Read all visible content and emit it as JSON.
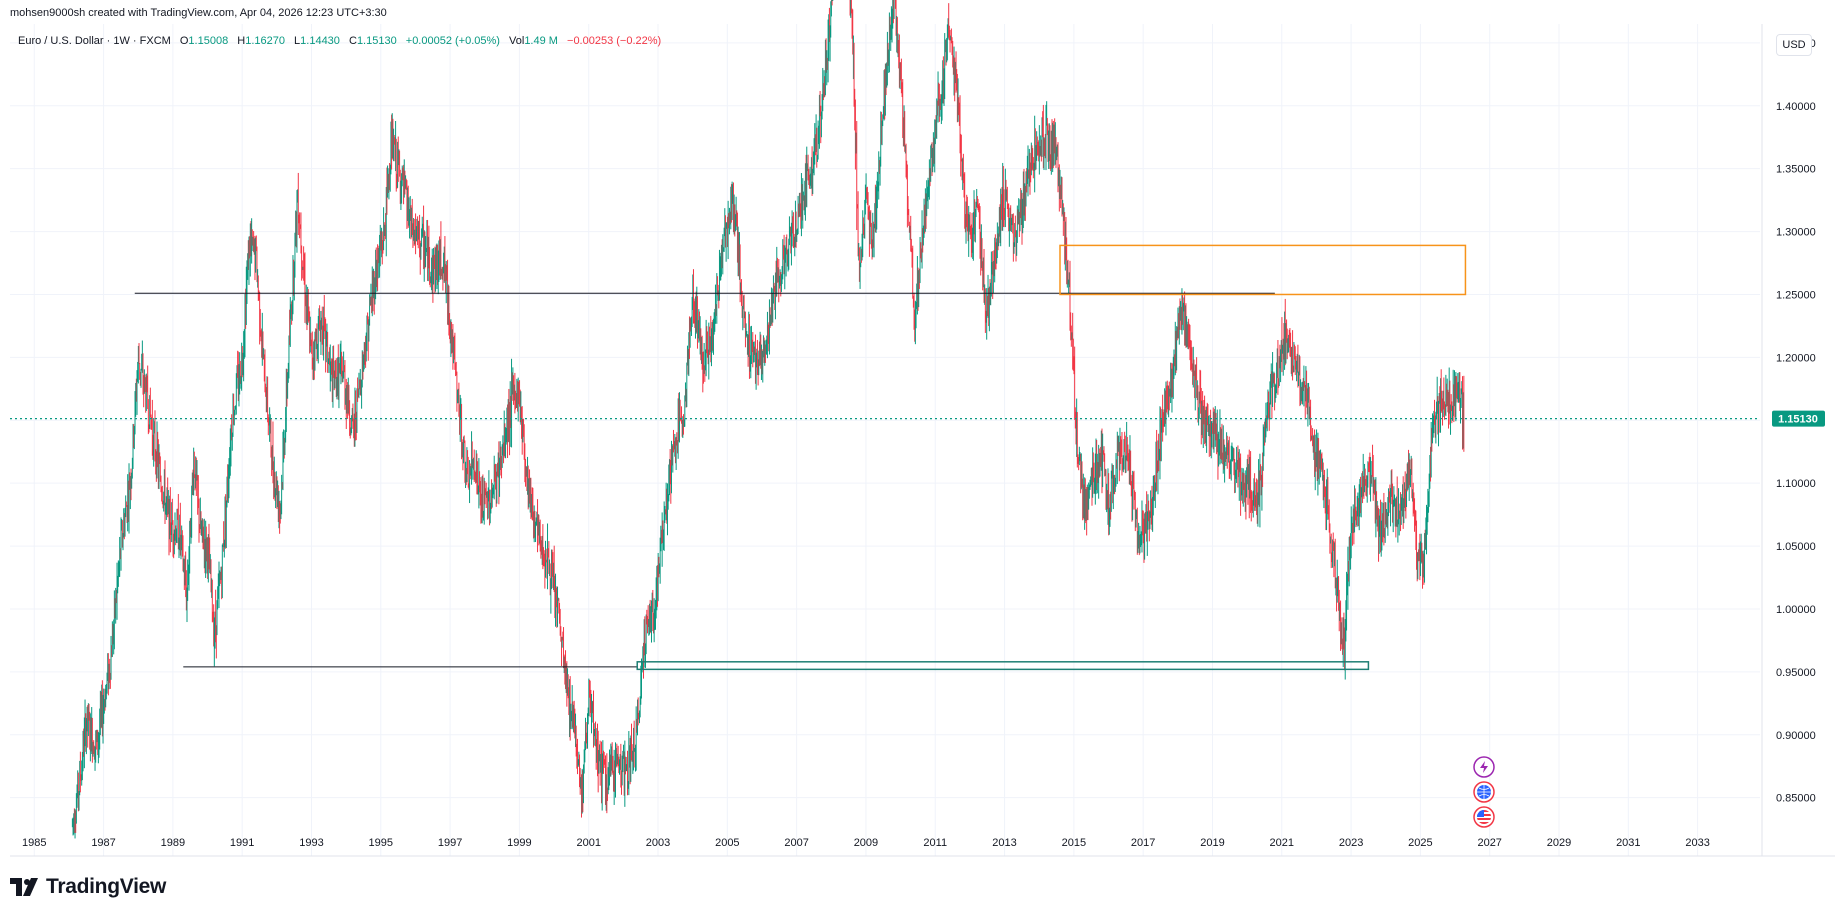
{
  "attribution": "mohsen9000sh created with TradingView.com, Apr 04, 2026 12:23 UTC+3:30",
  "legend": {
    "symbol": "Euro / U.S. Dollar · 1W · FXCM",
    "open_label": "O",
    "open": "1.15008",
    "high_label": "H",
    "high": "1.16270",
    "low_label": "L",
    "low": "1.14430",
    "close_label": "C",
    "close": "1.15130",
    "change": "+0.00052 (+0.05%)",
    "vol_label": "Vol",
    "vol": "1.49 M",
    "vol_change": "−0.00253 (−0.22%)"
  },
  "currency_button": "USD",
  "price_label": "1.15130",
  "logo_text": "TradingView",
  "colors": {
    "up": "#089981",
    "down": "#f23645",
    "orange": "#f7931a",
    "teal_box": "#1e7f74",
    "line": "#131722",
    "grid": "#f0f3fa"
  },
  "icons": [
    "lightning-icon",
    "globe-icon",
    "us-flag-icon"
  ],
  "chart_data": {
    "type": "candlestick",
    "title": "Euro / U.S. Dollar · 1W · FXCM",
    "y_ticks": [
      "1.45000",
      "1.40000",
      "1.35000",
      "1.30000",
      "1.25000",
      "1.20000",
      "1.15000",
      "1.10000",
      "1.05000",
      "1.00000",
      "0.95000",
      "0.90000",
      "0.85000"
    ],
    "x_ticks": [
      "1985",
      "1987",
      "1989",
      "1991",
      "1993",
      "1995",
      "1997",
      "1999",
      "2001",
      "2003",
      "2005",
      "2007",
      "2009",
      "2011",
      "2013",
      "2015",
      "2017",
      "2019",
      "2021",
      "2023",
      "2025",
      "2027",
      "2029",
      "2031",
      "2033"
    ],
    "ylim": [
      0.81,
      1.465
    ],
    "xlim": [
      1984.3,
      2034.8
    ],
    "grid": true,
    "last_price": 1.1513,
    "price_path": [
      [
        1986.1,
        0.83
      ],
      [
        1986.3,
        0.86
      ],
      [
        1986.5,
        0.91
      ],
      [
        1986.8,
        0.89
      ],
      [
        1987.2,
        0.96
      ],
      [
        1987.5,
        1.05
      ],
      [
        1987.8,
        1.11
      ],
      [
        1988.0,
        1.2
      ],
      [
        1988.3,
        1.16
      ],
      [
        1988.6,
        1.11
      ],
      [
        1988.9,
        1.07
      ],
      [
        1989.2,
        1.06
      ],
      [
        1989.4,
        1.01
      ],
      [
        1989.6,
        1.12
      ],
      [
        1989.8,
        1.06
      ],
      [
        1990.0,
        1.05
      ],
      [
        1990.2,
        0.98
      ],
      [
        1990.4,
        1.03
      ],
      [
        1990.7,
        1.15
      ],
      [
        1991.0,
        1.2
      ],
      [
        1991.2,
        1.29
      ],
      [
        1991.4,
        1.28
      ],
      [
        1991.6,
        1.2
      ],
      [
        1991.9,
        1.11
      ],
      [
        1992.1,
        1.08
      ],
      [
        1992.3,
        1.18
      ],
      [
        1992.6,
        1.33
      ],
      [
        1992.8,
        1.26
      ],
      [
        1993.0,
        1.2
      ],
      [
        1993.3,
        1.23
      ],
      [
        1993.6,
        1.18
      ],
      [
        1993.9,
        1.19
      ],
      [
        1994.2,
        1.14
      ],
      [
        1994.5,
        1.2
      ],
      [
        1994.8,
        1.26
      ],
      [
        1995.1,
        1.3
      ],
      [
        1995.3,
        1.37
      ],
      [
        1995.6,
        1.34
      ],
      [
        1995.9,
        1.3
      ],
      [
        1996.2,
        1.29
      ],
      [
        1996.5,
        1.27
      ],
      [
        1996.8,
        1.28
      ],
      [
        1997.0,
        1.23
      ],
      [
        1997.2,
        1.17
      ],
      [
        1997.5,
        1.1
      ],
      [
        1997.7,
        1.12
      ],
      [
        1997.9,
        1.08
      ],
      [
        1998.2,
        1.09
      ],
      [
        1998.5,
        1.12
      ],
      [
        1998.8,
        1.17
      ],
      [
        1999.0,
        1.17
      ],
      [
        1999.2,
        1.11
      ],
      [
        1999.5,
        1.06
      ],
      [
        1999.8,
        1.04
      ],
      [
        2000.1,
        1.0
      ],
      [
        2000.4,
        0.93
      ],
      [
        2000.6,
        0.91
      ],
      [
        2000.8,
        0.85
      ],
      [
        2001.0,
        0.93
      ],
      [
        2001.2,
        0.89
      ],
      [
        2001.5,
        0.86
      ],
      [
        2001.8,
        0.88
      ],
      [
        2002.1,
        0.87
      ],
      [
        2002.4,
        0.9
      ],
      [
        2002.6,
        0.98
      ],
      [
        2002.9,
        1.0
      ],
      [
        2003.2,
        1.08
      ],
      [
        2003.5,
        1.13
      ],
      [
        2003.8,
        1.17
      ],
      [
        2004.0,
        1.25
      ],
      [
        2004.3,
        1.2
      ],
      [
        2004.6,
        1.22
      ],
      [
        2004.9,
        1.3
      ],
      [
        2005.2,
        1.32
      ],
      [
        2005.5,
        1.22
      ],
      [
        2005.8,
        1.2
      ],
      [
        2006.1,
        1.2
      ],
      [
        2006.4,
        1.26
      ],
      [
        2006.7,
        1.28
      ],
      [
        2007.0,
        1.31
      ],
      [
        2007.3,
        1.34
      ],
      [
        2007.6,
        1.37
      ],
      [
        2007.9,
        1.45
      ],
      [
        2008.2,
        1.55
      ],
      [
        2008.4,
        1.57
      ],
      [
        2008.6,
        1.47
      ],
      [
        2008.8,
        1.27
      ],
      [
        2009.0,
        1.32
      ],
      [
        2009.2,
        1.29
      ],
      [
        2009.5,
        1.4
      ],
      [
        2009.8,
        1.49
      ],
      [
        2010.1,
        1.38
      ],
      [
        2010.4,
        1.23
      ],
      [
        2010.6,
        1.29
      ],
      [
        2010.9,
        1.36
      ],
      [
        2011.2,
        1.42
      ],
      [
        2011.4,
        1.47
      ],
      [
        2011.7,
        1.38
      ],
      [
        2011.9,
        1.3
      ],
      [
        2012.2,
        1.32
      ],
      [
        2012.5,
        1.23
      ],
      [
        2012.8,
        1.3
      ],
      [
        2013.0,
        1.33
      ],
      [
        2013.3,
        1.29
      ],
      [
        2013.6,
        1.33
      ],
      [
        2013.9,
        1.37
      ],
      [
        2014.2,
        1.38
      ],
      [
        2014.5,
        1.36
      ],
      [
        2014.7,
        1.31
      ],
      [
        2014.9,
        1.24
      ],
      [
        2015.1,
        1.13
      ],
      [
        2015.3,
        1.08
      ],
      [
        2015.5,
        1.11
      ],
      [
        2015.8,
        1.12
      ],
      [
        2016.0,
        1.08
      ],
      [
        2016.3,
        1.13
      ],
      [
        2016.6,
        1.11
      ],
      [
        2016.9,
        1.05
      ],
      [
        2017.2,
        1.07
      ],
      [
        2017.5,
        1.14
      ],
      [
        2017.8,
        1.18
      ],
      [
        2018.1,
        1.24
      ],
      [
        2018.3,
        1.22
      ],
      [
        2018.6,
        1.16
      ],
      [
        2018.9,
        1.14
      ],
      [
        2019.2,
        1.13
      ],
      [
        2019.5,
        1.12
      ],
      [
        2019.8,
        1.1
      ],
      [
        2020.1,
        1.1
      ],
      [
        2020.3,
        1.08
      ],
      [
        2020.6,
        1.16
      ],
      [
        2020.9,
        1.19
      ],
      [
        2021.1,
        1.22
      ],
      [
        2021.4,
        1.19
      ],
      [
        2021.7,
        1.17
      ],
      [
        2021.9,
        1.13
      ],
      [
        2022.2,
        1.1
      ],
      [
        2022.5,
        1.04
      ],
      [
        2022.7,
        0.99
      ],
      [
        2022.8,
        0.97
      ],
      [
        2023.0,
        1.07
      ],
      [
        2023.3,
        1.09
      ],
      [
        2023.6,
        1.11
      ],
      [
        2023.8,
        1.06
      ],
      [
        2024.1,
        1.09
      ],
      [
        2024.4,
        1.07
      ],
      [
        2024.7,
        1.11
      ],
      [
        2024.9,
        1.04
      ],
      [
        2025.1,
        1.03
      ],
      [
        2025.3,
        1.13
      ],
      [
        2025.6,
        1.17
      ],
      [
        2025.9,
        1.16
      ],
      [
        2026.1,
        1.18
      ],
      [
        2026.2,
        1.16
      ],
      [
        2026.26,
        1.1513
      ]
    ],
    "annotations": [
      {
        "kind": "horizontal-segment",
        "from": 1987.9,
        "to": 2020.8,
        "price": 1.251
      },
      {
        "kind": "horizontal-segment",
        "from": 1989.3,
        "to": 2002.4,
        "price": 0.954
      },
      {
        "kind": "rectangle",
        "color": "orange",
        "from": 2014.6,
        "to": 2026.3,
        "top": 1.289,
        "bottom": 1.25
      },
      {
        "kind": "rectangle",
        "color": "teal",
        "from": 2002.4,
        "to": 2023.5,
        "top": 0.958,
        "bottom": 0.952
      }
    ]
  }
}
